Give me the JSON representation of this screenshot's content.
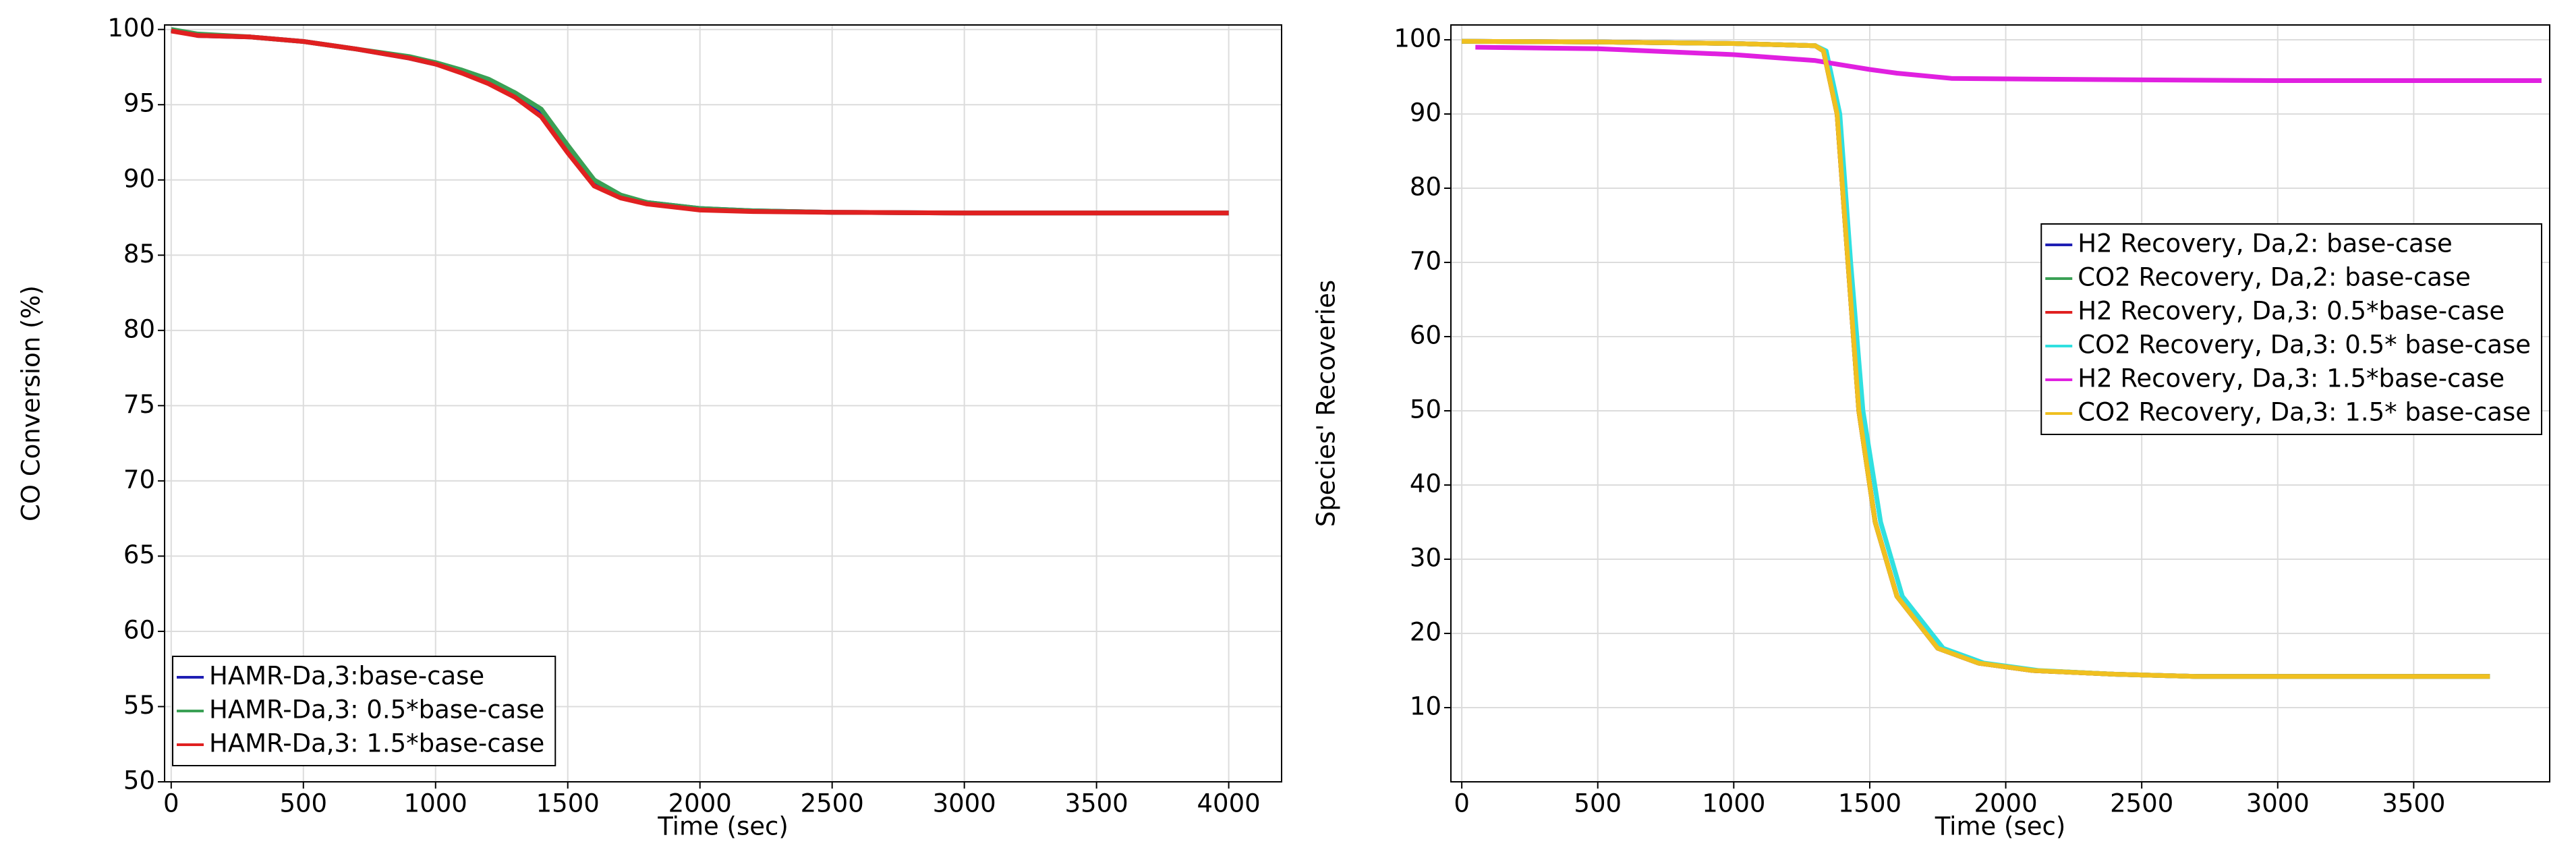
{
  "chart_data": [
    {
      "type": "line",
      "xlabel": "Time (sec)",
      "ylabel": "CO Conversion (%)",
      "xlim": [
        -25,
        4200
      ],
      "ylim": [
        50,
        100.3
      ],
      "xticks": [
        0,
        500,
        1000,
        1500,
        2000,
        2500,
        3000,
        3500,
        4000
      ],
      "yticks": [
        50,
        55,
        60,
        65,
        70,
        75,
        80,
        85,
        90,
        95,
        100
      ],
      "grid": true,
      "legend": "lower left",
      "series": [
        {
          "name": "HAMR-Da,3:base-case",
          "color": "#1f1fb4",
          "x": [
            0,
            100,
            300,
            500,
            700,
            900,
            1000,
            1100,
            1200,
            1300,
            1400,
            1500,
            1600,
            1700,
            1800,
            2000,
            2200,
            2500,
            3000,
            3500,
            4000
          ],
          "values": [
            100,
            99.6,
            99.5,
            99.2,
            98.7,
            98.1,
            97.7,
            97.2,
            96.5,
            95.6,
            94.4,
            92.0,
            89.8,
            88.9,
            88.5,
            88.1,
            87.95,
            87.85,
            87.8,
            87.8,
            87.8
          ]
        },
        {
          "name": "HAMR-Da,3: 0.5*base-case",
          "color": "#3aa055",
          "x": [
            0,
            100,
            300,
            500,
            700,
            900,
            1000,
            1100,
            1200,
            1300,
            1400,
            1500,
            1600,
            1700,
            1800,
            2000,
            2200,
            2500,
            3000,
            3500,
            4000
          ],
          "values": [
            100,
            99.7,
            99.5,
            99.2,
            98.7,
            98.2,
            97.8,
            97.3,
            96.7,
            95.8,
            94.7,
            92.3,
            90.0,
            89.0,
            88.5,
            88.1,
            87.95,
            87.85,
            87.8,
            87.8,
            87.8
          ]
        },
        {
          "name": "HAMR-Da,3: 1.5*base-case",
          "color": "#e02020",
          "x": [
            0,
            100,
            300,
            500,
            700,
            900,
            1000,
            1100,
            1200,
            1300,
            1400,
            1500,
            1600,
            1700,
            1800,
            2000,
            2200,
            2500,
            3000,
            3500,
            4000
          ],
          "values": [
            99.9,
            99.6,
            99.5,
            99.2,
            98.7,
            98.1,
            97.7,
            97.1,
            96.4,
            95.5,
            94.2,
            91.8,
            89.6,
            88.8,
            88.4,
            88.0,
            87.9,
            87.85,
            87.8,
            87.8,
            87.8
          ]
        }
      ]
    },
    {
      "type": "line",
      "xlabel": "Time (sec)",
      "ylabel": "Species' Recoveries",
      "xlim": [
        -40,
        4000
      ],
      "ylim": [
        0,
        102
      ],
      "xticks": [
        0,
        500,
        1000,
        1500,
        2000,
        2500,
        3000,
        3500
      ],
      "yticks": [
        10,
        20,
        30,
        40,
        50,
        60,
        70,
        80,
        90,
        100
      ],
      "grid": true,
      "legend": "center right",
      "series": [
        {
          "name": "H2 Recovery, Da,2: base-case",
          "color": "#1f1fb4",
          "x": [
            0,
            500,
            1000,
            1300,
            1330,
            1380,
            1420,
            1460,
            1520,
            1600,
            1750,
            1900,
            2100,
            2400,
            2700,
            3200,
            3780
          ],
          "values": [
            99.8,
            99.7,
            99.5,
            99.2,
            98.5,
            90,
            70,
            50,
            35,
            25,
            18,
            16,
            15,
            14.5,
            14.2,
            14.2,
            14.2
          ]
        },
        {
          "name": "CO2 Recovery, Da,2: base-case",
          "color": "#3aa055",
          "x": [
            0,
            500,
            1000,
            1300,
            1330,
            1380,
            1420,
            1460,
            1520,
            1600,
            1750,
            1900,
            2100,
            2400,
            2700,
            3200,
            3780
          ],
          "values": [
            99.8,
            99.7,
            99.5,
            99.2,
            98.5,
            90,
            70,
            50,
            35,
            25,
            18,
            16,
            15,
            14.5,
            14.2,
            14.2,
            14.2
          ]
        },
        {
          "name": "H2 Recovery, Da,3: 0.5*base-case",
          "color": "#e02020",
          "x": [
            0,
            500,
            1000,
            1300,
            1330,
            1380,
            1420,
            1460,
            1520,
            1600,
            1750,
            1900,
            2100,
            2400,
            2700,
            3200,
            3780
          ],
          "values": [
            99.8,
            99.7,
            99.5,
            99.2,
            98.5,
            90,
            70,
            50,
            35,
            25,
            18,
            16,
            15,
            14.5,
            14.2,
            14.2,
            14.2
          ]
        },
        {
          "name": "CO2 Recovery, Da,3: 0.5* base-case",
          "color": "#30e0e0",
          "x": [
            0,
            500,
            1000,
            1300,
            1340,
            1390,
            1430,
            1475,
            1540,
            1620,
            1770,
            1920,
            2120,
            2400,
            2700,
            3200,
            3780
          ],
          "values": [
            99.8,
            99.7,
            99.5,
            99.2,
            98.5,
            90,
            70,
            50,
            35,
            25,
            18,
            16,
            15,
            14.5,
            14.2,
            14.2,
            14.2
          ]
        },
        {
          "name": "H2 Recovery, Da,3: 1.5*base-case",
          "color": "#e020e0",
          "x": [
            50,
            500,
            1000,
            1300,
            1400,
            1500,
            1600,
            1800,
            2100,
            2500,
            3000,
            3500,
            3970
          ],
          "values": [
            99.0,
            98.8,
            98.0,
            97.2,
            96.6,
            96.0,
            95.5,
            94.8,
            94.7,
            94.6,
            94.5,
            94.5,
            94.5
          ]
        },
        {
          "name": "CO2 Recovery, Da,3: 1.5* base-case",
          "color": "#f0c020",
          "x": [
            0,
            500,
            1000,
            1300,
            1330,
            1380,
            1420,
            1460,
            1520,
            1600,
            1750,
            1900,
            2100,
            2400,
            2700,
            3200,
            3780
          ],
          "values": [
            99.8,
            99.7,
            99.5,
            99.2,
            98.5,
            90,
            70,
            50,
            35,
            25,
            18,
            16,
            15,
            14.5,
            14.2,
            14.2,
            14.2
          ]
        }
      ]
    }
  ]
}
